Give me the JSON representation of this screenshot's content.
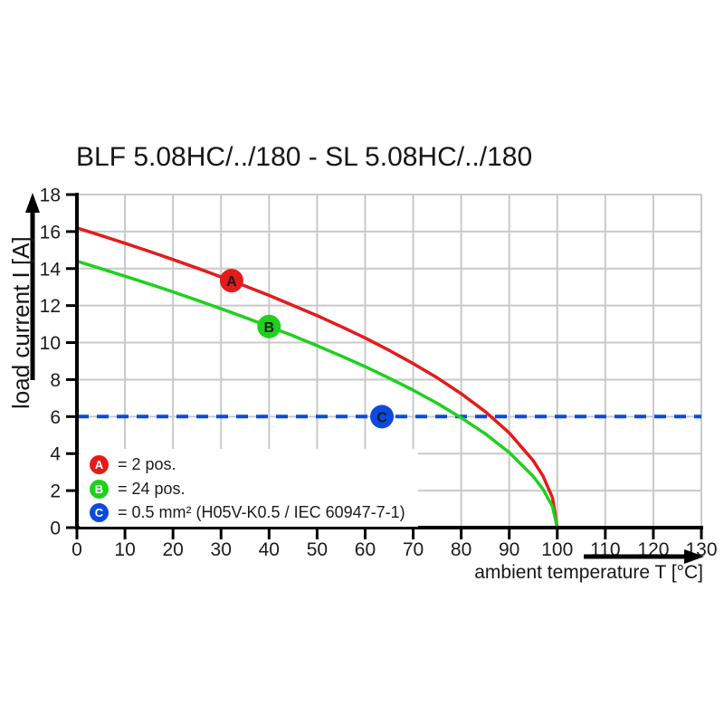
{
  "chart_data": {
    "type": "line",
    "title": "BLF 5.08HC/../180 - SL 5.08HC/../180",
    "xlabel": "ambient temperature T [°C]",
    "ylabel": "load current I [A]",
    "xlim": [
      0,
      130
    ],
    "ylim": [
      0,
      18
    ],
    "x_ticks": [
      0,
      10,
      20,
      30,
      40,
      50,
      60,
      70,
      80,
      90,
      100,
      110,
      120,
      130
    ],
    "y_ticks": [
      0,
      2,
      4,
      6,
      8,
      10,
      12,
      14,
      16,
      18
    ],
    "grid": true,
    "legend_position": "bottom-left-inside",
    "colors": {
      "axis": "#000000",
      "grid": "#c9c9c9",
      "marker_letter": "#ffffff"
    },
    "series": [
      {
        "id": "A",
        "legend_label": "= 2 pos.",
        "color": "#e41b1b",
        "dashed": false,
        "marker_at": {
          "x": 32.2,
          "y": 13.35
        },
        "points": [
          [
            0,
            16.2
          ],
          [
            5,
            15.79
          ],
          [
            10,
            15.37
          ],
          [
            15,
            14.94
          ],
          [
            20,
            14.49
          ],
          [
            25,
            14.03
          ],
          [
            30,
            13.55
          ],
          [
            35,
            13.06
          ],
          [
            40,
            12.55
          ],
          [
            45,
            12.01
          ],
          [
            50,
            11.46
          ],
          [
            55,
            10.87
          ],
          [
            60,
            10.25
          ],
          [
            65,
            9.58
          ],
          [
            70,
            8.87
          ],
          [
            75,
            8.1
          ],
          [
            80,
            7.24
          ],
          [
            85,
            6.27
          ],
          [
            90,
            5.12
          ],
          [
            95,
            3.62
          ],
          [
            97,
            2.81
          ],
          [
            99,
            1.62
          ],
          [
            100,
            0
          ]
        ]
      },
      {
        "id": "B",
        "legend_label": "= 24 pos.",
        "color": "#1dd11d",
        "dashed": false,
        "marker_at": {
          "x": 40,
          "y": 10.87
        },
        "points": [
          [
            0,
            14.4
          ],
          [
            5,
            14.0
          ],
          [
            10,
            13.59
          ],
          [
            15,
            13.17
          ],
          [
            20,
            12.74
          ],
          [
            25,
            12.29
          ],
          [
            30,
            11.83
          ],
          [
            35,
            11.36
          ],
          [
            40,
            10.87
          ],
          [
            45,
            10.37
          ],
          [
            50,
            9.83
          ],
          [
            55,
            9.28
          ],
          [
            60,
            8.7
          ],
          [
            65,
            8.08
          ],
          [
            70,
            7.43
          ],
          [
            75,
            6.72
          ],
          [
            80,
            5.94
          ],
          [
            85,
            5.07
          ],
          [
            90,
            4.06
          ],
          [
            95,
            2.77
          ],
          [
            97,
            2.09
          ],
          [
            99,
            1.14
          ],
          [
            100,
            0
          ]
        ]
      },
      {
        "id": "C",
        "legend_label": "= 0.5 mm² (H05V-K0.5 / IEC 60947-7-1)",
        "color": "#0b4ae0",
        "dashed": true,
        "marker_at": {
          "x": 63.5,
          "y": 6
        },
        "points": [
          [
            0,
            6
          ],
          [
            130,
            6
          ]
        ]
      }
    ]
  }
}
